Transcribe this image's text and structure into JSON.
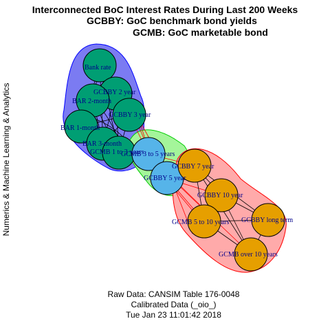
{
  "title": {
    "line1": "Interconnected BoC Interest Rates During Last 200 Weeks",
    "line2": "GCBBY: GoC benchmark bond yields",
    "line3": "GCMB: GoC marketable bond"
  },
  "side_label": "Numerics & Machine Learning & Analytics",
  "footer": {
    "line1": "Raw Data: CANSIM Table 176-0048",
    "line2": "Calibrated Data (_oio_)",
    "line3": "Tue Jan 23 11:01:42 2018"
  },
  "colors": {
    "group_short_fill": "#7b7bf2",
    "group_short_stroke": "#0000ff",
    "group_mid_fill": "#a4f59a",
    "group_mid_stroke": "#00cc00",
    "group_long_fill": "#ffaaaa",
    "group_long_stroke": "#ff0000",
    "node_short": "#009e73",
    "node_mid": "#56b4e9",
    "node_long": "#e69f00",
    "label": "#00008b"
  },
  "nodes": [
    {
      "id": "bank_rate",
      "label": "Bank rate",
      "group": "short"
    },
    {
      "id": "gcbby_2",
      "label": "GCBBY 2 year",
      "group": "short"
    },
    {
      "id": "bar_2m",
      "label": "BAR 2-month",
      "group": "short"
    },
    {
      "id": "gcbby_3",
      "label": "GCBBY 3 year",
      "group": "short"
    },
    {
      "id": "bar_1m",
      "label": "BAR 1-month",
      "group": "short"
    },
    {
      "id": "bar_3m",
      "label": "BAR 3-month",
      "group": "short"
    },
    {
      "id": "gcmb_1_3",
      "label": "GCMB 1 to 3 years",
      "group": "short"
    },
    {
      "id": "gcmb_3_5",
      "label": "GCMB 3 to 5 years",
      "group": "mid"
    },
    {
      "id": "gcbby_5",
      "label": "GCBBY 5 year",
      "group": "mid"
    },
    {
      "id": "gcbby_7",
      "label": "GCBBY 7 year",
      "group": "long"
    },
    {
      "id": "gcbby_10",
      "label": "GCBBY 10 year",
      "group": "long"
    },
    {
      "id": "gcmb_5_10",
      "label": "GCMB 5 to 10 years",
      "group": "long"
    },
    {
      "id": "gcbby_long",
      "label": "GCBBY long term",
      "group": "long"
    },
    {
      "id": "gcmb_over10",
      "label": "GCMB over 10 years",
      "group": "long"
    }
  ]
}
